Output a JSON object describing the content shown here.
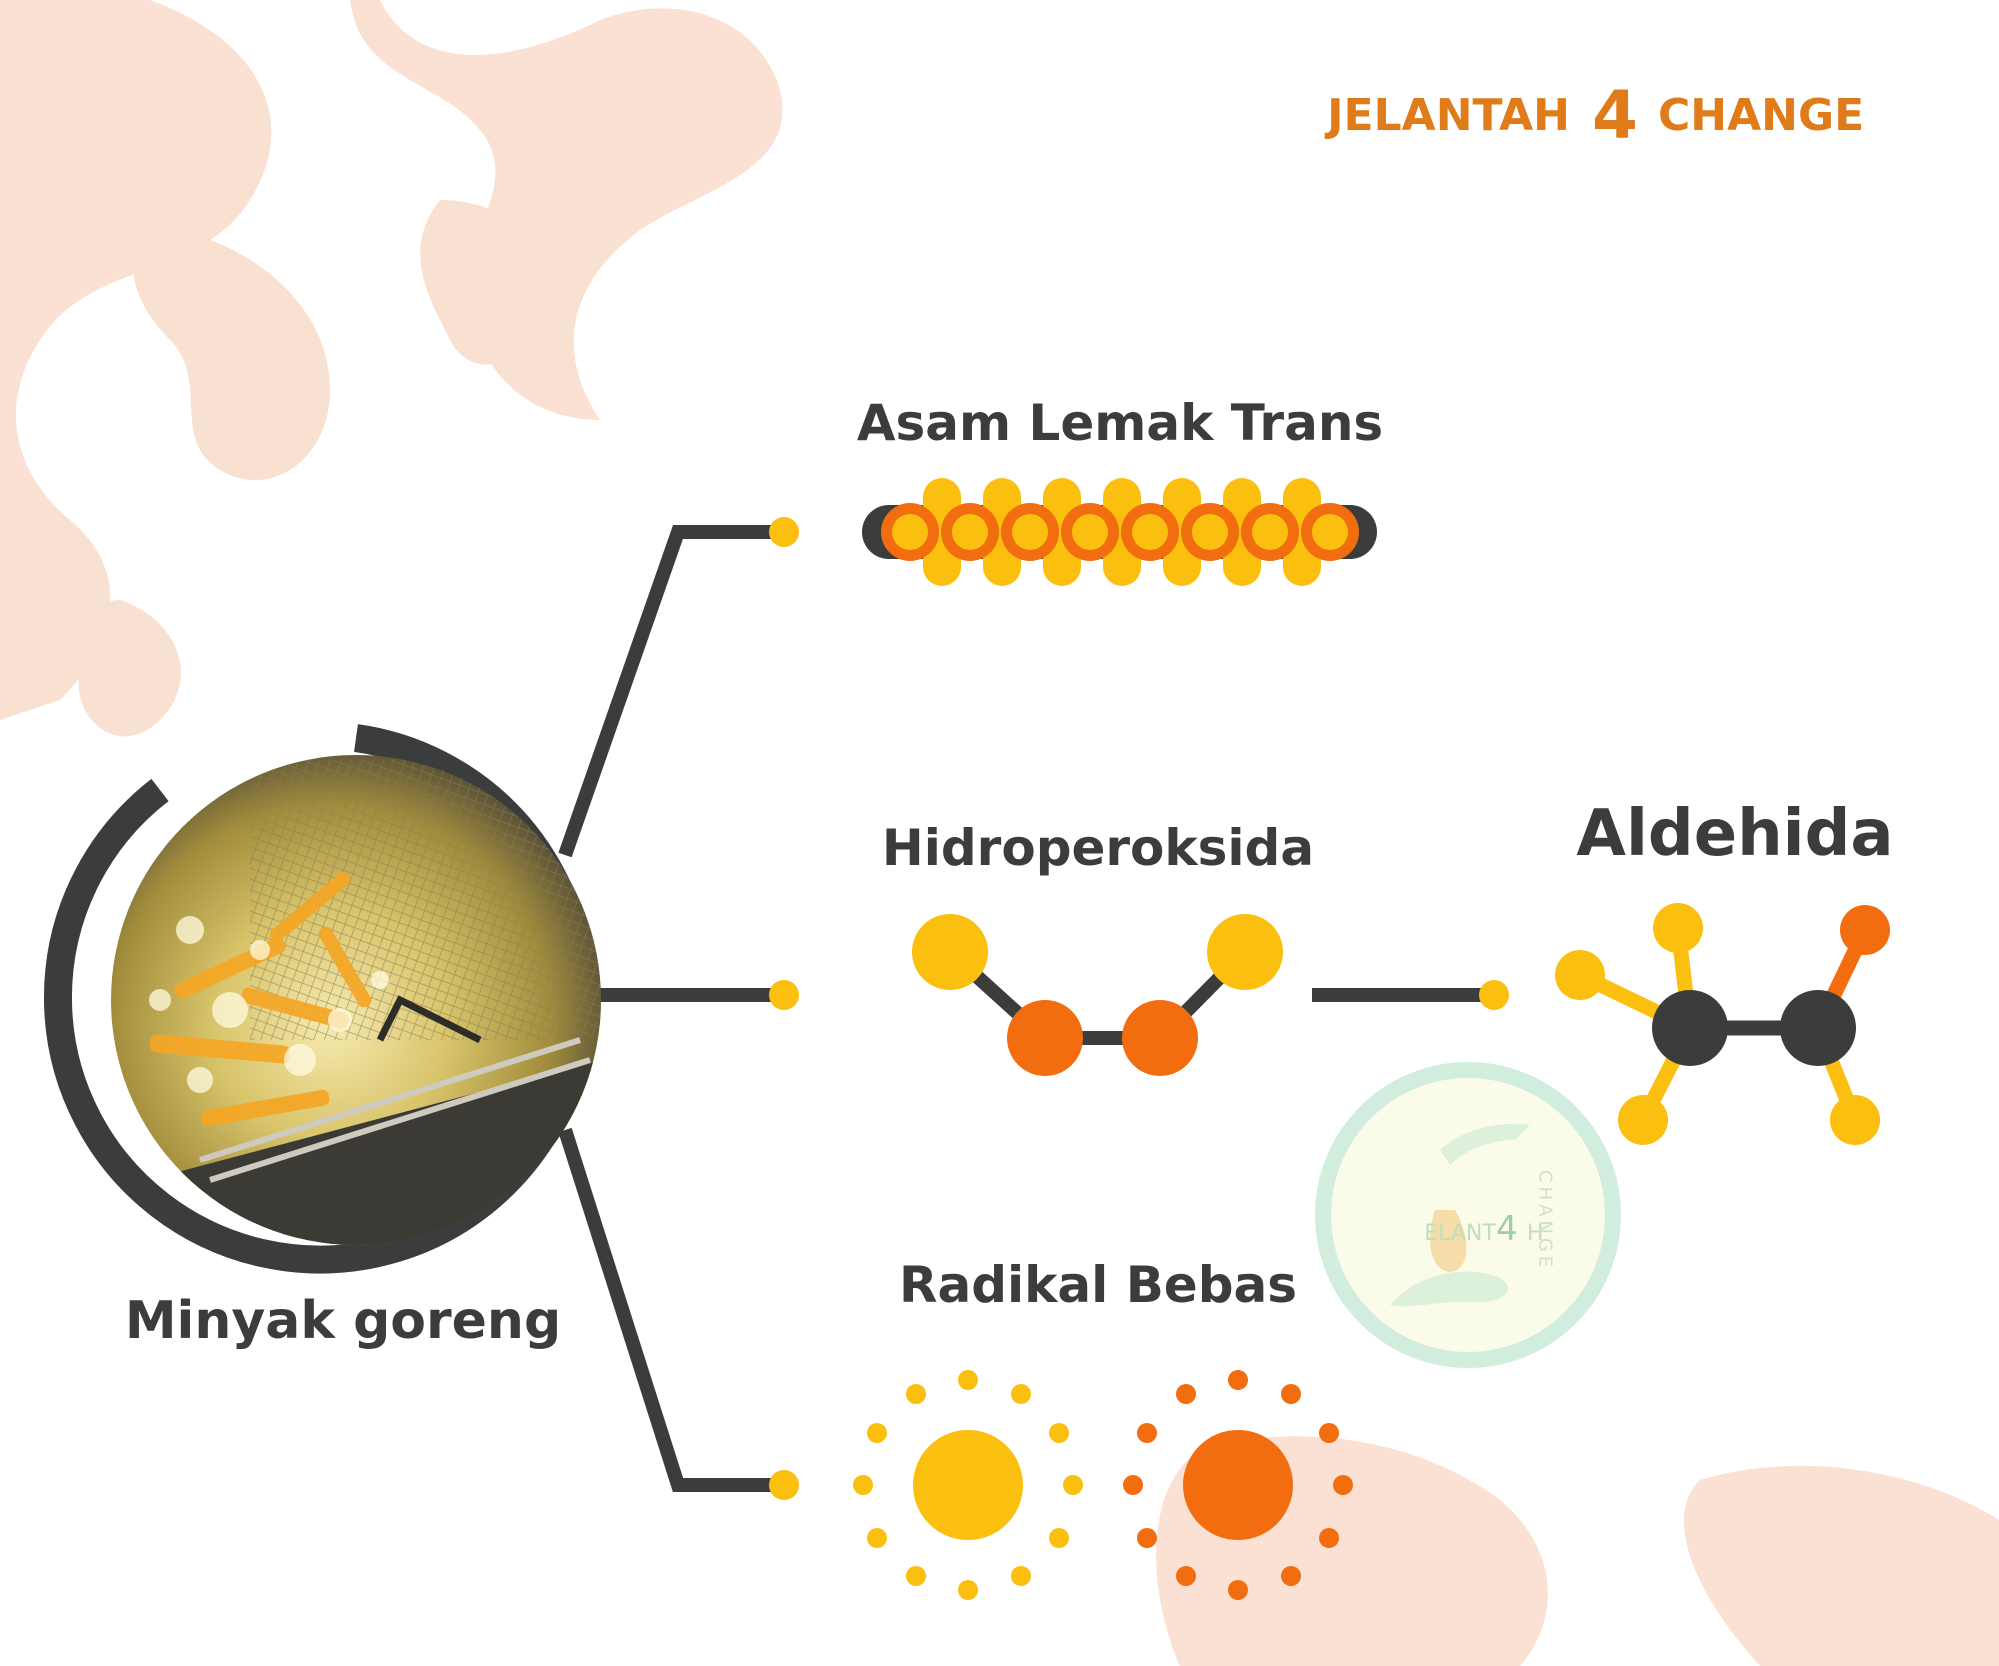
{
  "brand": {
    "left": "JELANTAH",
    "digit": "4",
    "right": "CHANGE",
    "color": "#e07b1a"
  },
  "source": {
    "label": "Minyak goreng"
  },
  "products": {
    "trans_fat": "Asam Lemak Trans",
    "hydroperoxide": "Hidroperoksida",
    "free_radicals": "Radikal Bebas",
    "aldehyde": "Aldehida"
  },
  "watermark": {
    "text_left": "ELANT",
    "digit": "4",
    "text_right": "H",
    "vertical": "CHANGE"
  },
  "colors": {
    "dark": "#3a3d3c",
    "yellow": "#fbbf10",
    "orange": "#f26d0f",
    "blob": "#f9dccb",
    "mint": "#c9ead8"
  }
}
